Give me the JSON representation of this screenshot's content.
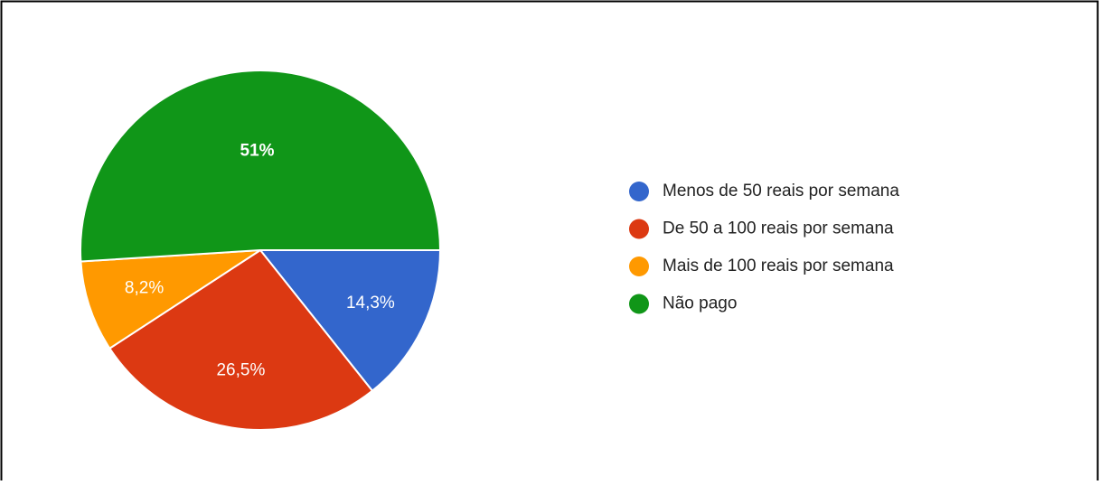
{
  "chart_data": {
    "type": "pie",
    "categories": [
      "Menos de 50 reais por semana",
      "De 50 a 100 reais por semana",
      "Mais de 100 reais por semana",
      "Não pago"
    ],
    "values": [
      14.3,
      26.5,
      8.2,
      51
    ],
    "value_labels": [
      "14,3%",
      "26,5%",
      "8,2%",
      "51%"
    ],
    "colors": [
      "#3366cc",
      "#dc3912",
      "#ff9900",
      "#109618"
    ]
  }
}
